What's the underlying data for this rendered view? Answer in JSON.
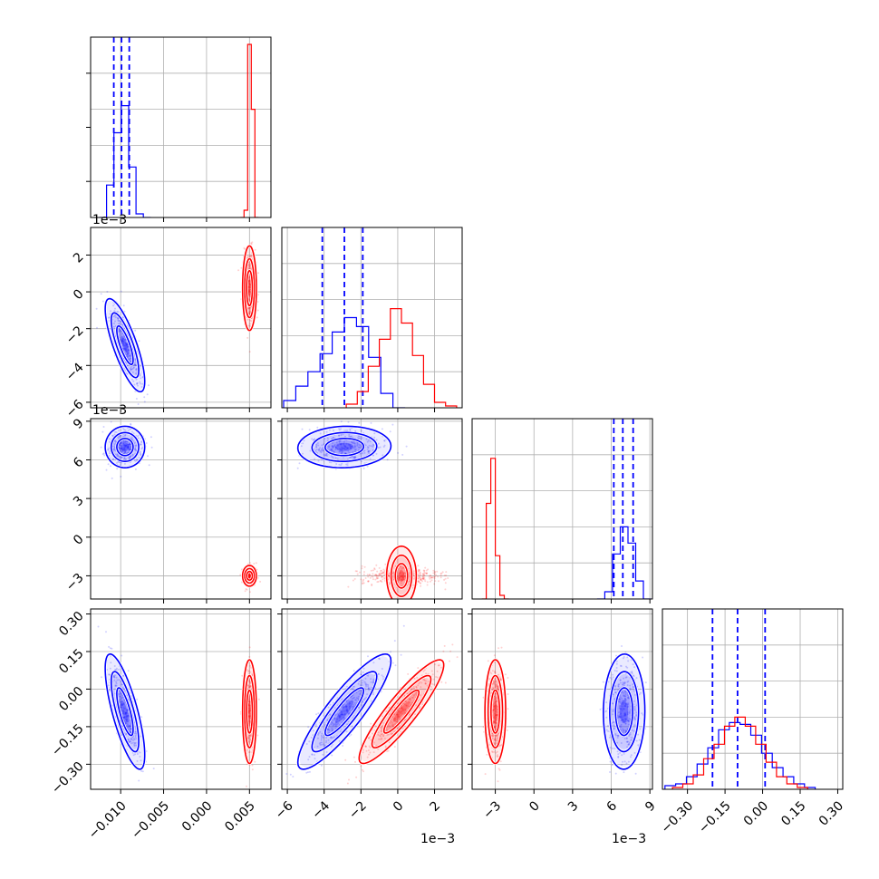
{
  "colors": {
    "series_a": "#0000ff",
    "series_b": "#ff0000",
    "grid": "#b0b0b0",
    "frame": "#000000"
  },
  "chart_data": {
    "type": "corner",
    "title": "",
    "grid": true,
    "parameters": [
      {
        "index": 0,
        "range": [
          -0.0135,
          0.0075
        ],
        "ticks": [
          -0.01,
          -0.005,
          0.0,
          0.005
        ],
        "tick_labels": [
          "−0.010",
          "−0.005",
          "0.000",
          "0.005"
        ],
        "offset_text": ""
      },
      {
        "index": 1,
        "range": [
          -0.0063,
          0.0035
        ],
        "ticks": [
          -0.006,
          -0.004,
          -0.002,
          0.0,
          0.002
        ],
        "tick_labels": [
          "−6",
          "−4",
          "−2",
          "0",
          "2"
        ],
        "offset_text": "1e−3"
      },
      {
        "index": 2,
        "range": [
          -0.0048,
          0.0092
        ],
        "ticks": [
          -0.003,
          0.0,
          0.003,
          0.006,
          0.009
        ],
        "tick_labels": [
          "−3",
          "0",
          "3",
          "6",
          "9"
        ],
        "offset_text": "1e−3"
      },
      {
        "index": 3,
        "range": [
          -0.4,
          0.32
        ],
        "ticks": [
          -0.3,
          -0.15,
          0.0,
          0.15,
          0.3
        ],
        "tick_labels": [
          "−0.30",
          "−0.15",
          "0.00",
          "0.15",
          "0.30"
        ],
        "offset_text": ""
      }
    ],
    "series": [
      {
        "color": "#0000ff",
        "means": [
          -0.0095,
          -0.0029,
          0.007,
          -0.09
        ],
        "stds": [
          0.001,
          0.0011,
          0.0007,
          0.1
        ],
        "quantile_lines": [
          [
            -0.0108,
            -0.0099,
            -0.009
          ],
          [
            -0.0041,
            -0.0029,
            -0.0019
          ],
          [
            0.0062,
            0.0069,
            0.0077
          ],
          [
            -0.2,
            -0.1,
            0.01
          ]
        ],
        "hist_heights": [
          [
            0.0,
            0.18,
            0.47,
            0.62,
            0.28,
            0.02,
            0.0
          ],
          [
            0.04,
            0.12,
            0.2,
            0.3,
            0.42,
            0.5,
            0.45,
            0.28,
            0.08,
            0.0
          ],
          [
            0.0,
            0.04,
            0.25,
            0.4,
            0.31,
            0.1,
            0.0
          ],
          [
            0.02,
            0.03,
            0.07,
            0.14,
            0.23,
            0.33,
            0.37,
            0.36,
            0.3,
            0.2,
            0.12,
            0.07,
            0.03,
            0.01
          ]
        ]
      },
      {
        "color": "#ff0000",
        "means": [
          0.005,
          0.0002,
          -0.003,
          -0.09
        ],
        "stds": [
          0.00035,
          0.001,
          0.00035,
          0.09
        ],
        "quantile_lines": null,
        "hist_heights": [
          [
            0.0,
            0.04,
            0.96,
            0.6,
            0.0
          ],
          [
            0.02,
            0.09,
            0.23,
            0.38,
            0.55,
            0.47,
            0.29,
            0.13,
            0.03,
            0.01
          ],
          [
            0.0,
            0.53,
            0.78,
            0.24,
            0.02,
            0.0
          ],
          [
            0.01,
            0.03,
            0.08,
            0.17,
            0.25,
            0.35,
            0.4,
            0.35,
            0.25,
            0.15,
            0.07,
            0.03,
            0.01
          ]
        ]
      }
    ],
    "correlations": {
      "series_a": {
        "1-0": -0.78,
        "2-0": 0.0,
        "2-1": 0.05,
        "3-0": -0.75,
        "3-1": 0.88,
        "3-2": 0.02
      },
      "series_b": {
        "1-0": 0.0,
        "2-0": 0.0,
        "2-1": 0.0,
        "3-0": 0.0,
        "3-1": 0.9,
        "3-2": 0.0
      }
    }
  }
}
